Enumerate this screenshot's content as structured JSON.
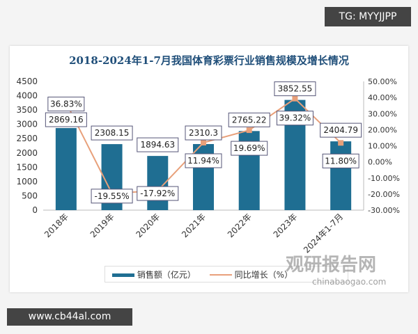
{
  "watermark_top": "TG: MYYJJPP",
  "watermark_bottom": "www.cb44al.com",
  "logo_text": "观研报告网",
  "logo_sub": "chinabaogao.com",
  "chart_data": {
    "type": "bar+line",
    "title": "2018-2024年1-7月我国体育彩票行业销售规模及增长情况",
    "categories": [
      "2018年",
      "2019年",
      "2020年",
      "2021年",
      "2022年",
      "2023年",
      "2024年1-7月"
    ],
    "series": [
      {
        "name": "销售额（亿元）",
        "type": "bar",
        "axis": "left",
        "color": "#1f6e92",
        "values": [
          2869.16,
          2308.15,
          1894.63,
          2310.3,
          2765.22,
          3852.55,
          2404.79
        ],
        "labels": [
          "2869.16",
          "2308.15",
          "1894.63",
          "2310.3",
          "2765.22",
          "3852.55",
          "2404.79"
        ]
      },
      {
        "name": "同比增长（%）",
        "type": "line",
        "axis": "right",
        "color": "#e8a07a",
        "values": [
          36.83,
          -19.55,
          -17.92,
          11.94,
          19.69,
          39.32,
          11.8
        ],
        "labels": [
          "36.83%",
          "-19.55%",
          "-17.92%",
          "11.94%",
          "19.69%",
          "39.32%",
          "11.80%"
        ]
      }
    ],
    "yleft": {
      "range": [
        0,
        4500
      ],
      "ticks": [
        "0",
        "500",
        "1000",
        "1500",
        "2000",
        "2500",
        "3000",
        "3500",
        "4000",
        "4500"
      ]
    },
    "yright": {
      "range": [
        -30,
        50
      ],
      "ticks": [
        "-30.00%",
        "-20.00%",
        "-10.00%",
        "0.00%",
        "10.00%",
        "20.00%",
        "30.00%",
        "40.00%",
        "50.00%"
      ]
    },
    "grid": false,
    "legend": "bottom"
  }
}
